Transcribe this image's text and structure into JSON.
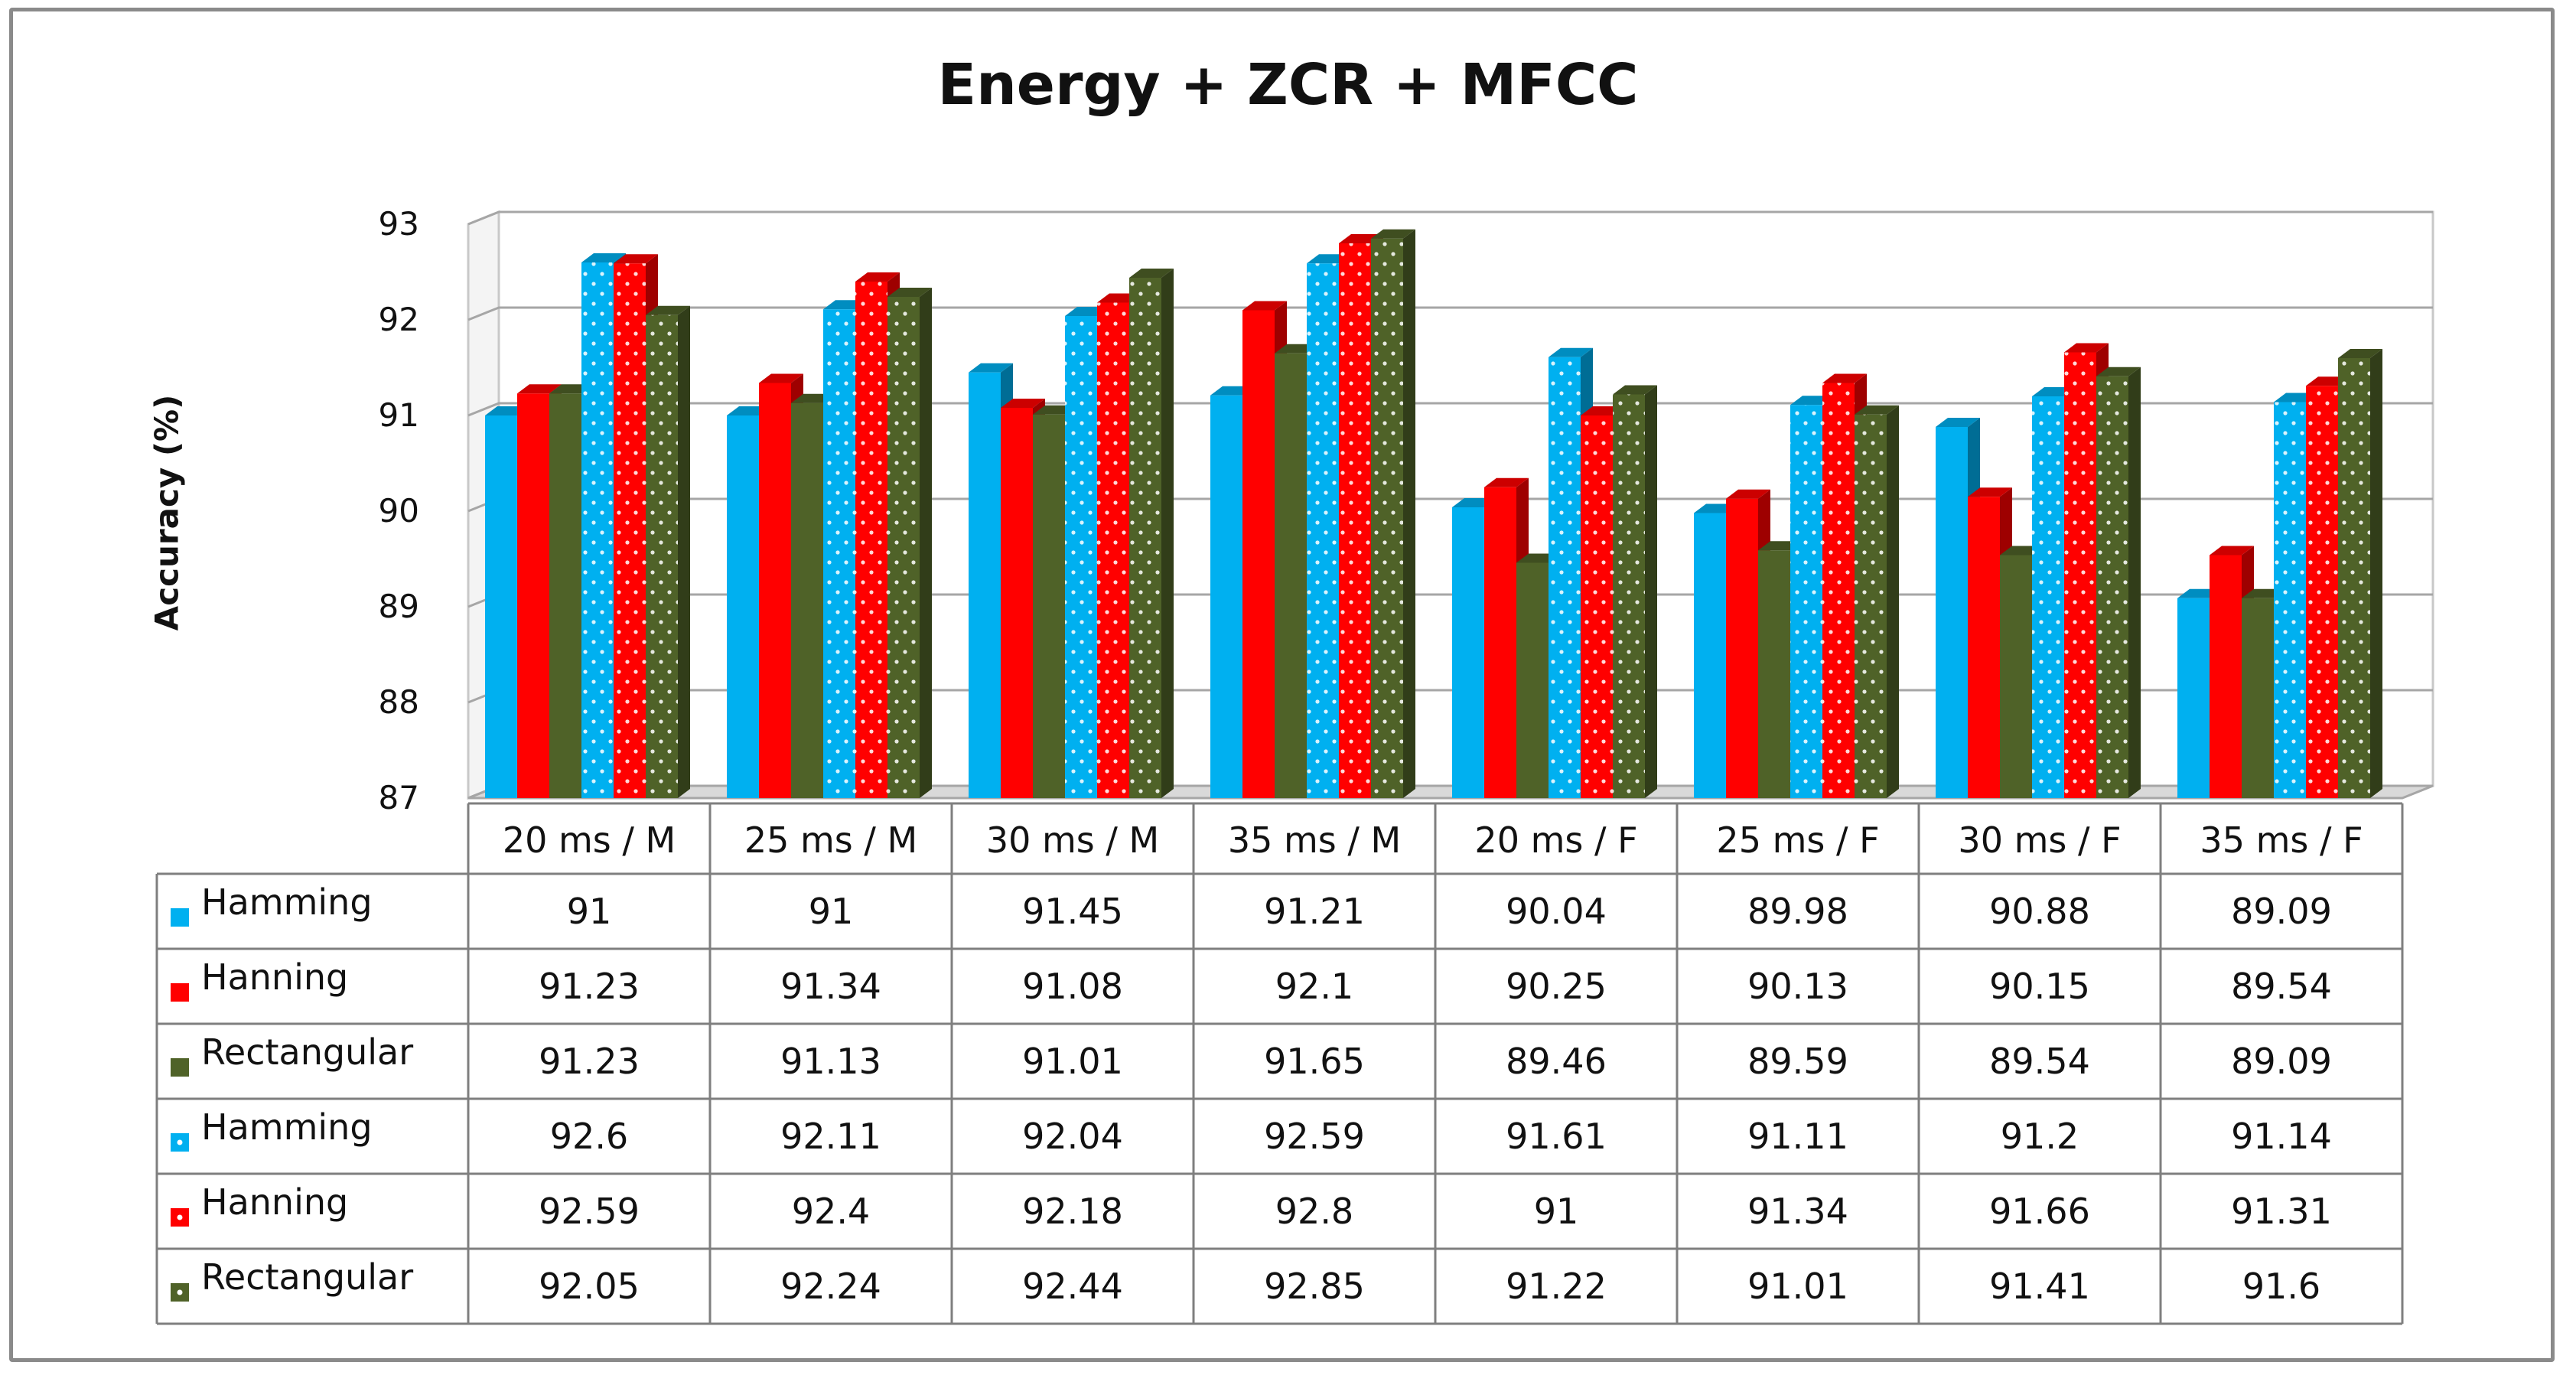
{
  "chart_data": {
    "type": "bar",
    "title": "Energy + ZCR + MFCC",
    "ylabel": "Accuracy (%)",
    "xlabel": "",
    "ylim": [
      87,
      93
    ],
    "yticks": [
      87,
      88,
      89,
      90,
      91,
      92,
      93
    ],
    "categories": [
      "20 ms / M",
      "25 ms / M",
      "30 ms / M",
      "35 ms / M",
      "20 ms / F",
      "25 ms / F",
      "30 ms / F",
      "35 ms / F"
    ],
    "series": [
      {
        "name": "Hamming",
        "color": "#00b0f0",
        "pattern": "solid",
        "values": [
          91,
          91,
          91.45,
          91.21,
          90.04,
          89.98,
          90.88,
          89.09
        ]
      },
      {
        "name": "Hanning",
        "color": "#ff0000",
        "pattern": "solid",
        "values": [
          91.23,
          91.34,
          91.08,
          92.1,
          90.25,
          90.13,
          90.15,
          89.54
        ]
      },
      {
        "name": "Rectangular",
        "color": "#4f6228",
        "pattern": "solid",
        "values": [
          91.23,
          91.13,
          91.01,
          91.65,
          89.46,
          89.59,
          89.54,
          89.09
        ]
      },
      {
        "name": "Hamming",
        "color": "#00b0f0",
        "pattern": "dotted",
        "values": [
          92.6,
          92.11,
          92.04,
          92.59,
          91.61,
          91.11,
          91.2,
          91.14
        ]
      },
      {
        "name": "Hanning",
        "color": "#ff0000",
        "pattern": "dotted",
        "values": [
          92.59,
          92.4,
          92.18,
          92.8,
          91,
          91.34,
          91.66,
          91.31
        ]
      },
      {
        "name": "Rectangular",
        "color": "#4f6228",
        "pattern": "dotted",
        "values": [
          92.05,
          92.24,
          92.44,
          92.85,
          91.22,
          91.01,
          91.41,
          91.6
        ]
      }
    ],
    "legend_position": "data-table"
  }
}
